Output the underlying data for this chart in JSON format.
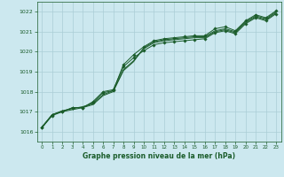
{
  "xlabel": "Graphe pression niveau de la mer (hPa)",
  "xlim": [
    -0.5,
    23.5
  ],
  "ylim": [
    1015.5,
    1022.5
  ],
  "yticks": [
    1016,
    1017,
    1018,
    1019,
    1020,
    1021,
    1022
  ],
  "xticks": [
    0,
    1,
    2,
    3,
    4,
    5,
    6,
    7,
    8,
    9,
    10,
    11,
    12,
    13,
    14,
    15,
    16,
    17,
    18,
    19,
    20,
    21,
    22,
    23
  ],
  "background_color": "#cce8ef",
  "grid_color": "#aacdd6",
  "line_color": "#1a5c2a",
  "series1": [
    1016.2,
    1016.85,
    1017.0,
    1017.2,
    1017.2,
    1017.45,
    1017.95,
    1018.05,
    1019.35,
    1019.85,
    1020.25,
    1020.55,
    1020.65,
    1020.7,
    1020.75,
    1020.8,
    1020.8,
    1021.15,
    1021.25,
    1021.05,
    1021.55,
    1021.85,
    1021.7,
    1022.05
  ],
  "series2": [
    1016.2,
    1016.85,
    1017.0,
    1017.1,
    1017.2,
    1017.35,
    1017.8,
    1018.0,
    1019.05,
    1019.5,
    1020.2,
    1020.5,
    1020.6,
    1020.65,
    1020.7,
    1020.75,
    1020.75,
    1021.05,
    1021.15,
    1021.0,
    1021.5,
    1021.8,
    1021.65,
    1022.0
  ],
  "series3": [
    1016.25,
    1016.85,
    1017.05,
    1017.15,
    1017.25,
    1017.4,
    1017.85,
    1018.05,
    1019.1,
    1019.55,
    1020.15,
    1020.45,
    1020.55,
    1020.6,
    1020.65,
    1020.7,
    1020.7,
    1021.0,
    1021.1,
    1020.95,
    1021.45,
    1021.75,
    1021.6,
    1021.95
  ],
  "series4": [
    1016.2,
    1016.8,
    1017.0,
    1017.2,
    1017.2,
    1017.5,
    1018.0,
    1018.1,
    1019.25,
    1019.7,
    1020.05,
    1020.35,
    1020.45,
    1020.5,
    1020.55,
    1020.6,
    1020.65,
    1020.95,
    1021.05,
    1020.9,
    1021.4,
    1021.7,
    1021.55,
    1021.9
  ]
}
